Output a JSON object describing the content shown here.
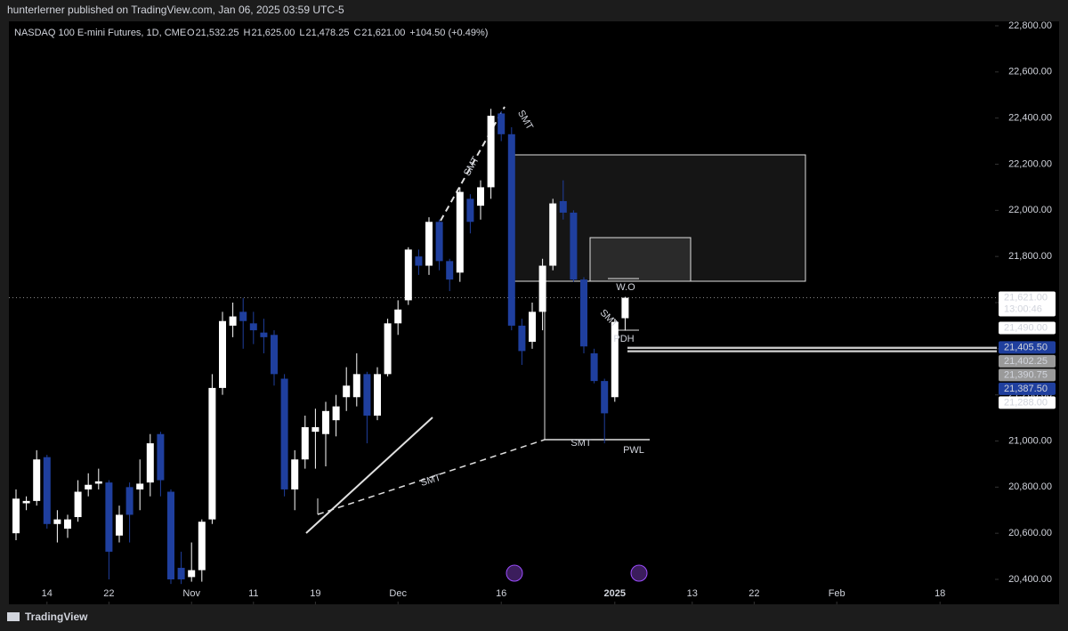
{
  "chart_data": {
    "type": "candlestick",
    "header": "hunterlerner published on TradingView.com, Jan 06, 2025 03:59 UTC-5",
    "title": "NASDAQ 100 E-mini Futures, 1D, CME",
    "ohlc": [
      {
        "key": "O",
        "label": "21,532.25"
      },
      {
        "key": "H",
        "label": "21,625.00"
      },
      {
        "key": "L",
        "label": "21,478.25"
      },
      {
        "key": "C",
        "label": "21,621.00"
      }
    ],
    "change": "+104.50 (+0.49%)",
    "open": [
      20600,
      20730,
      20740,
      20930,
      20640,
      20620,
      20670,
      20790,
      20815,
      20820,
      20590,
      20800,
      20790,
      20820,
      21030,
      20780,
      20450,
      20410,
      20440,
      20660,
      21230,
      21500,
      21560,
      21510,
      21470,
      21460,
      21270,
      20790,
      20920,
      21040,
      21030,
      21090,
      21190,
      21190,
      21290,
      21110,
      21290,
      21510,
      21610,
      21800,
      21760,
      21950,
      21780,
      21730,
      22050,
      22020,
      22100,
      22420,
      22330,
      21500,
      21430,
      21560,
      21760,
      22040,
      21990,
      21700,
      21380,
      21260,
      21190,
      21532.25
    ],
    "high": [
      20790,
      20760,
      20960,
      20940,
      20700,
      20680,
      20830,
      20860,
      20880,
      20830,
      20720,
      20820,
      20920,
      21030,
      21040,
      20790,
      20520,
      20560,
      20660,
      21290,
      21560,
      21600,
      21620,
      21560,
      21530,
      21480,
      21290,
      20960,
      21110,
      21140,
      21170,
      21200,
      21320,
      21380,
      21300,
      21320,
      21530,
      21610,
      21840,
      21830,
      21970,
      21960,
      21790,
      22100,
      22070,
      22130,
      22440,
      22430,
      22360,
      21530,
      21600,
      21790,
      22050,
      22130,
      22000,
      21710,
      21400,
      21270,
      21530,
      21625
    ],
    "low": [
      20570,
      20700,
      20720,
      20620,
      20560,
      20580,
      20650,
      20760,
      20790,
      20400,
      20560,
      20560,
      20700,
      20760,
      20760,
      20380,
      20380,
      20390,
      20390,
      20640,
      21200,
      21450,
      21400,
      21420,
      21380,
      21240,
      20760,
      20700,
      20880,
      20880,
      20890,
      21020,
      21130,
      21150,
      20990,
      21090,
      21280,
      21460,
      21590,
      21720,
      21720,
      21740,
      21650,
      21690,
      21900,
      21960,
      22050,
      22300,
      21480,
      21330,
      21400,
      21480,
      21740,
      21960,
      21690,
      21380,
      21250,
      20990,
      21170,
      21478.25
    ],
    "close": [
      20750,
      20740,
      20920,
      20640,
      20660,
      20660,
      20780,
      20810,
      20825,
      20520,
      20680,
      20680,
      20815,
      20990,
      20830,
      20400,
      20400,
      20440,
      20650,
      21230,
      21520,
      21540,
      21520,
      21480,
      21450,
      21290,
      20790,
      20920,
      21060,
      21060,
      21130,
      21150,
      21240,
      21290,
      21110,
      21290,
      21510,
      21570,
      21830,
      21760,
      21950,
      21780,
      21700,
      22080,
      21950,
      22100,
      22410,
      22330,
      21500,
      21390,
      21560,
      21760,
      22030,
      21990,
      21700,
      21410,
      21260,
      21120,
      21516.5,
      21621
    ],
    "up_color": "#ffffff",
    "down_color": "#1f3f9e",
    "ylim": [
      20400,
      22800
    ],
    "yticks": [
      {
        "value": 20400,
        "label": "20,400.00"
      },
      {
        "value": 20600,
        "label": "20,600.00"
      },
      {
        "value": 20800,
        "label": "20,800.00"
      },
      {
        "value": 21000,
        "label": "21,000.00"
      },
      {
        "value": 21200,
        "label": "21,200.00"
      },
      {
        "value": 21400,
        "label": "21,400.00"
      },
      {
        "value": 21600,
        "label": "21,600.00"
      },
      {
        "value": 21800,
        "label": "21,800.00"
      },
      {
        "value": 22000,
        "label": "22,000.00"
      },
      {
        "value": 22200,
        "label": "22,200.00"
      },
      {
        "value": 22400,
        "label": "22,400.00"
      },
      {
        "value": 22600,
        "label": "22,600.00"
      },
      {
        "value": 22800,
        "label": "22,800.00"
      }
    ],
    "xticks": [
      {
        "value": 3,
        "label": "14"
      },
      {
        "value": 9,
        "label": "22"
      },
      {
        "value": 17,
        "label": "Nov"
      },
      {
        "value": 23,
        "label": "11"
      },
      {
        "value": 29,
        "label": "19"
      },
      {
        "value": 37,
        "label": "Dec"
      },
      {
        "value": 47,
        "label": "16"
      },
      {
        "value": 58,
        "label": "2025"
      },
      {
        "value": 65.5,
        "label": "13"
      },
      {
        "value": 71.5,
        "label": "22"
      },
      {
        "value": 79.5,
        "label": "Feb"
      },
      {
        "value": 89.5,
        "label": "18"
      }
    ],
    "price_labels": [
      {
        "value": 21621,
        "label": "21,621.00",
        "color": "#ffffff"
      },
      {
        "value": 21490,
        "label": "21,490.00",
        "color": "#ffffff"
      },
      {
        "value": 21405.5,
        "label": "21,405.50",
        "color": "#1f3f9e"
      },
      {
        "value": 21402.25,
        "label": "21,402.25",
        "color": "#9a9a9a"
      },
      {
        "value": 21390.75,
        "label": "21,390.75",
        "color": "#9a9a9a"
      },
      {
        "value": 21387.5,
        "label": "21,387.50",
        "color": "#1f3f9e"
      },
      {
        "value": 21288,
        "label": "21,288.00",
        "color": "#ffffff"
      }
    ],
    "countdown": "13:00:46",
    "annotations": [
      "SMT",
      "SMT",
      "SMT",
      "SMT",
      "SMT",
      "W.O",
      "PDH",
      "PWL"
    ],
    "brand": "TradingView"
  }
}
